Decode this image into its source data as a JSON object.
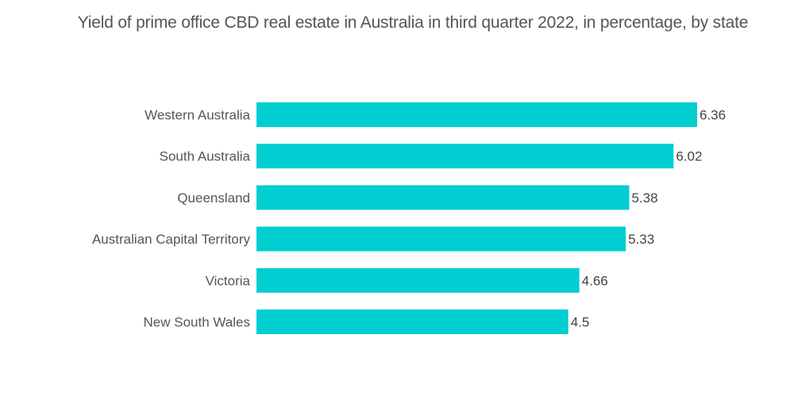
{
  "chart_data": {
    "type": "bar",
    "orientation": "horizontal",
    "title": "Yield of prime office CBD real estate in Australia in third quarter 2022, in percentage, by state",
    "categories": [
      "Western Australia",
      "South Australia",
      "Queensland",
      "Australian Capital Territory",
      "Victoria",
      "New South Wales"
    ],
    "values": [
      6.36,
      6.02,
      5.38,
      5.33,
      4.66,
      4.5
    ],
    "value_labels": [
      "6.36",
      "6.02",
      "5.38",
      "5.33",
      "4.66",
      "4.5"
    ],
    "xlabel": "",
    "ylabel": "",
    "xlim": [
      0,
      6.36
    ],
    "grid": false,
    "legend": "none",
    "bar_color": "#00CED1"
  }
}
